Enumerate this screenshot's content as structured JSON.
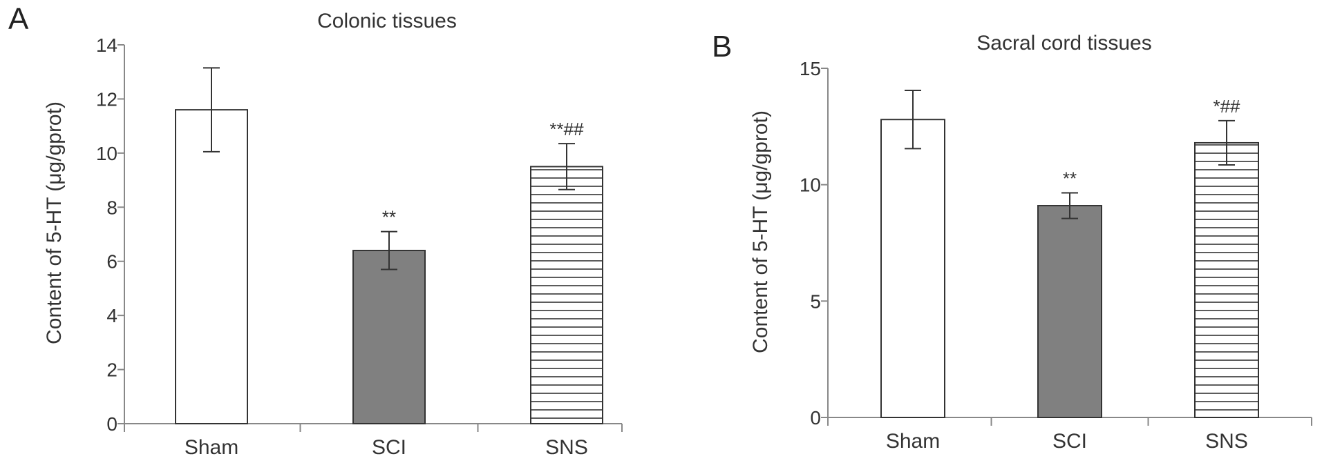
{
  "chart_data": [
    {
      "type": "bar",
      "panel": "A",
      "title": "Colonic  tissues",
      "ylabel": "Content of 5-HT (μg/gprot)",
      "xlabel": "",
      "categories": [
        "Sham",
        "SCI",
        "SNS"
      ],
      "values": [
        11.6,
        6.4,
        9.5
      ],
      "errors": [
        1.55,
        0.7,
        0.85
      ],
      "annotations": [
        "",
        "**",
        "**##"
      ],
      "fills": [
        "white",
        "gray",
        "hatch"
      ],
      "ylim": [
        0,
        14
      ],
      "yticks": [
        0,
        2,
        4,
        6,
        8,
        10,
        12,
        14
      ],
      "grid": false
    },
    {
      "type": "bar",
      "panel": "B",
      "title": "Sacral cord tissues",
      "ylabel": "Content of 5-HT (μg/gprot)",
      "xlabel": "",
      "categories": [
        "Sham",
        "SCI",
        "SNS"
      ],
      "values": [
        12.8,
        9.1,
        11.8
      ],
      "errors": [
        1.25,
        0.55,
        0.95
      ],
      "annotations": [
        "",
        "**",
        "*##"
      ],
      "fills": [
        "white",
        "gray",
        "hatch"
      ],
      "ylim": [
        0,
        15
      ],
      "yticks": [
        0,
        5,
        10,
        15
      ],
      "grid": false
    }
  ],
  "colors": {
    "gray_bar": "#808080",
    "white_bar": "#ffffff",
    "hatch_line": "#333333",
    "axis": "#888888"
  }
}
